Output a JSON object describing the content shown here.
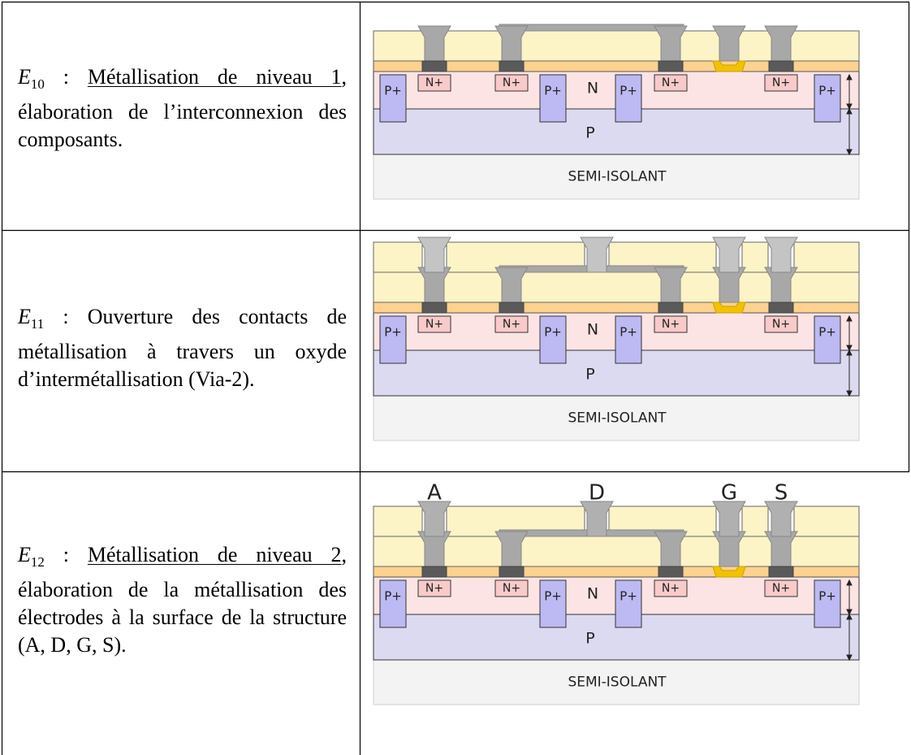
{
  "rows": [
    {
      "step": {
        "base": "E",
        "sub": "10",
        "sep": " : "
      },
      "title": "Métallisation de niveau 1",
      "text": ", élaboration de l’interconnexion des composants.",
      "diagram": {
        "n_plus": "N+",
        "p_plus": "P+",
        "n": "N",
        "p": "P",
        "substrate": "SEMI-ISOLANT"
      }
    },
    {
      "step": {
        "base": "E",
        "sub": "11",
        "sep": " : "
      },
      "text": "Ouverture des contacts de métallisation à travers un oxyde d’intermétallisation (Via-2).",
      "diagram": {
        "n_plus": "N+",
        "p_plus": "P+",
        "n": "N",
        "p": "P",
        "substrate": "SEMI-ISOLANT"
      }
    },
    {
      "step": {
        "base": "E",
        "sub": "12",
        "sep": " : "
      },
      "title": "Métallisation de niveau 2",
      "text": ", élaboration de la métallisation des électrodes à la surface de la structure (A, D, G, S).",
      "diagram": {
        "n_plus": "N+",
        "p_plus": "P+",
        "n": "N",
        "p": "P",
        "substrate": "SEMI-ISOLANT",
        "electrodes": [
          "A",
          "D",
          "G",
          "S"
        ]
      }
    }
  ]
}
